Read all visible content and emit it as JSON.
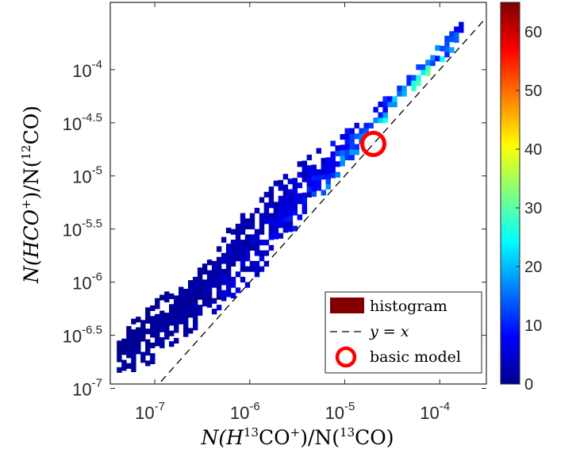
{
  "chart_data": {
    "type": "heatmap",
    "title": "",
    "xlabel": {
      "prefix": "N(H",
      "sup1": "13",
      "mid": "CO",
      "sup2": "+",
      "mid2": ")/N(",
      "sup3": "13",
      "suffix": "CO)"
    },
    "ylabel": {
      "prefix": "N(HCO",
      "sup1": "+",
      "mid": ")/N(",
      "sup2": "12",
      "suffix": "CO)"
    },
    "x_scale": "log",
    "y_scale": "log",
    "xlim": [
      3.4e-08,
      0.00031
    ],
    "ylim": [
      1.1e-07,
      0.00043
    ],
    "x_ticks": [
      {
        "value": 1e-07,
        "base": "10",
        "exp": "-7"
      },
      {
        "value": 1e-06,
        "base": "10",
        "exp": "-6"
      },
      {
        "value": 1e-05,
        "base": "10",
        "exp": "-5"
      },
      {
        "value": 0.0001,
        "base": "10",
        "exp": "-4"
      }
    ],
    "y_ticks": [
      {
        "value": 1e-07,
        "base": "10",
        "exp": "-7"
      },
      {
        "value": 3.162e-07,
        "base": "10",
        "exp": "-6.5"
      },
      {
        "value": 1e-06,
        "base": "10",
        "exp": "-6"
      },
      {
        "value": 3.162e-06,
        "base": "10",
        "exp": "-5.5"
      },
      {
        "value": 1e-05,
        "base": "10",
        "exp": "-5"
      },
      {
        "value": 3.162e-05,
        "base": "10",
        "exp": "-4.5"
      },
      {
        "value": 0.0001,
        "base": "10",
        "exp": "-4"
      }
    ],
    "colorbar": {
      "colormap": "jet",
      "range": [
        0,
        65
      ],
      "ticks": [
        "0",
        "10",
        "20",
        "30",
        "40",
        "50",
        "60"
      ]
    },
    "histogram_ridge": [
      {
        "log_x": -7.4,
        "log_y_lo": -6.9,
        "log_y_hi": -6.5,
        "count": 2
      },
      {
        "log_x": -7.0,
        "log_y_lo": -6.75,
        "log_y_hi": -6.2,
        "count": 3
      },
      {
        "log_x": -6.6,
        "log_y_lo": -6.5,
        "log_y_hi": -5.9,
        "count": 4
      },
      {
        "log_x": -6.2,
        "log_y_lo": -6.2,
        "log_y_hi": -5.45,
        "count": 6
      },
      {
        "log_x": -5.8,
        "log_y_lo": -5.8,
        "log_y_hi": -5.1,
        "count": 8
      },
      {
        "log_x": -5.4,
        "log_y_lo": -5.35,
        "log_y_hi": -4.85,
        "count": 12
      },
      {
        "log_x": -5.0,
        "log_y_lo": -4.9,
        "log_y_hi": -4.6,
        "count": 18
      },
      {
        "log_x": -4.6,
        "log_y_lo": -4.5,
        "log_y_hi": -4.3,
        "count": 22
      },
      {
        "log_x": -4.2,
        "log_y_lo": -4.1,
        "log_y_hi": -3.95,
        "count": 35
      },
      {
        "log_x": -3.8,
        "log_y_lo": -3.75,
        "log_y_hi": -3.55,
        "count": 20
      }
    ],
    "series": [
      {
        "name": "histogram",
        "color": "#800000"
      },
      {
        "name": "y = x",
        "color": "#000000"
      },
      {
        "name": "basic model",
        "color": "#ff0000",
        "x": 2e-05,
        "y": 2e-05
      }
    ],
    "legend": {
      "placement": "bottom-right",
      "entries": [
        {
          "label": "histogram"
        },
        {
          "label": "y = x"
        },
        {
          "label": "basic model"
        }
      ]
    },
    "grid": false
  }
}
